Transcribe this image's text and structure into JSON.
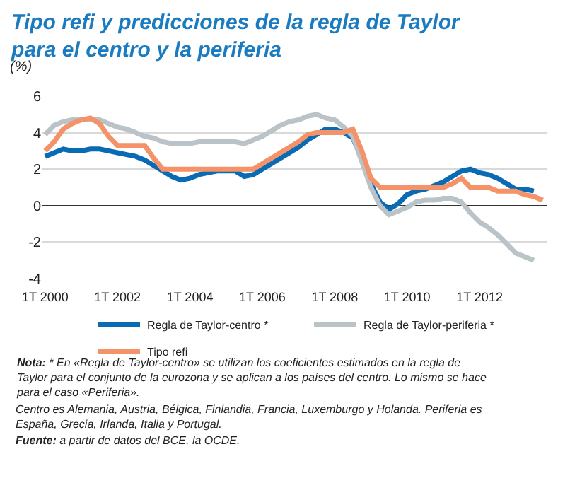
{
  "chart_data": {
    "type": "line",
    "title": "Tipo refi y predicciones de la regla de Taylor para el centro y la periferia",
    "ylabel": "(%)",
    "categories": [
      "1T 2000",
      null,
      null,
      null,
      null,
      null,
      null,
      null,
      "1T 2002",
      null,
      null,
      null,
      null,
      null,
      null,
      null,
      "1T 2004",
      null,
      null,
      null,
      null,
      null,
      null,
      null,
      "1T 2006",
      null,
      null,
      null,
      null,
      null,
      null,
      null,
      "1T 2008",
      null,
      null,
      null,
      null,
      null,
      null,
      null,
      "1T 2010",
      null,
      null,
      null,
      null,
      null,
      null,
      null,
      "1T 2012",
      null,
      null,
      null,
      null,
      null,
      null,
      null
    ],
    "ylim": [
      -4,
      6
    ],
    "yticks": [
      -4,
      -2,
      0,
      2,
      4,
      6
    ],
    "grid": "y",
    "legend": "bottom",
    "series": [
      {
        "name": "Regla de Taylor-centro *",
        "color": "#0a6bb5",
        "values": [
          2.7,
          2.9,
          3.1,
          3.0,
          3.0,
          3.1,
          3.1,
          3.0,
          2.9,
          2.8,
          2.7,
          2.5,
          2.2,
          1.9,
          1.6,
          1.4,
          1.5,
          1.7,
          1.8,
          1.9,
          1.9,
          1.9,
          1.6,
          1.7,
          2.0,
          2.3,
          2.6,
          2.9,
          3.2,
          3.6,
          3.9,
          4.2,
          4.2,
          4.0,
          3.7,
          2.6,
          1.2,
          0.2,
          -0.2,
          0.1,
          0.6,
          0.8,
          0.9,
          1.1,
          1.3,
          1.6,
          1.9,
          2.0,
          1.8,
          1.7,
          1.5,
          1.2,
          0.9,
          0.9,
          0.8,
          null
        ]
      },
      {
        "name": "Regla de Taylor-periferia *",
        "color": "#b9c3c8",
        "values": [
          3.9,
          4.4,
          4.6,
          4.7,
          4.7,
          4.7,
          4.7,
          4.5,
          4.3,
          4.2,
          4.0,
          3.8,
          3.7,
          3.5,
          3.4,
          3.4,
          3.4,
          3.5,
          3.5,
          3.5,
          3.5,
          3.5,
          3.4,
          3.6,
          3.8,
          4.1,
          4.4,
          4.6,
          4.7,
          4.9,
          5.0,
          4.8,
          4.7,
          4.3,
          3.8,
          2.4,
          1.0,
          0.0,
          -0.5,
          -0.3,
          -0.1,
          0.2,
          0.3,
          0.3,
          0.4,
          0.4,
          0.2,
          -0.4,
          -0.9,
          -1.2,
          -1.6,
          -2.1,
          -2.6,
          -2.8,
          -3.0,
          null
        ]
      },
      {
        "name": "Tipo refi",
        "color": "#f4936a",
        "values": [
          3.0,
          3.5,
          4.2,
          4.5,
          4.7,
          4.8,
          4.5,
          3.8,
          3.3,
          3.3,
          3.3,
          3.3,
          2.6,
          2.0,
          2.0,
          2.0,
          2.0,
          2.0,
          2.0,
          2.0,
          2.0,
          2.0,
          2.0,
          2.0,
          2.3,
          2.6,
          2.9,
          3.2,
          3.5,
          3.9,
          4.0,
          4.0,
          4.0,
          4.0,
          4.2,
          3.0,
          1.5,
          1.0,
          1.0,
          1.0,
          1.0,
          1.0,
          1.0,
          1.0,
          1.0,
          1.2,
          1.5,
          1.0,
          1.0,
          1.0,
          0.8,
          0.8,
          0.8,
          0.6,
          0.5,
          0.3
        ]
      }
    ],
    "annotations": [
      "Nota: * En «Regla de Taylor-centro» se utilizan los coeficientes estimados en la regla de Taylor para el conjunto de la eurozona y se aplican a los países del centro. Lo mismo se hace para el caso «Periferia».",
      "Centro es Alemania, Austria, Bélgica, Finlandia, Francia, Luxemburgo y Holanda. Periferia es España, Grecia, Irlanda, Italia y Portugal.",
      "Fuente: a partir de datos del BCE, la OCDE."
    ]
  }
}
